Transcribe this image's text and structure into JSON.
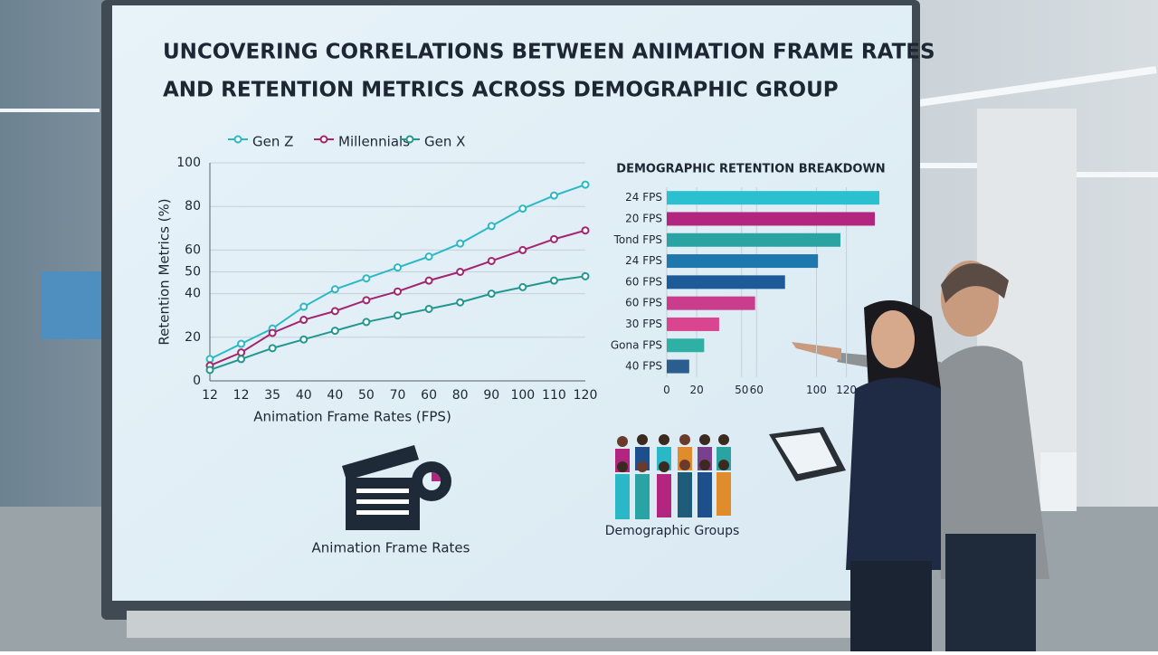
{
  "title_lines": [
    "UNCOVERING CORRELATIONS BETWEEN ANIMATION FRAME RATES",
    "AND RETENTION METRICS ACROSS DEMOGRAPHIC GROUP"
  ],
  "captions": [
    "Animation Frame Rates",
    "Demographic Groups"
  ],
  "chart_data": [
    {
      "type": "line",
      "x_label": "Animation Frame Rates (FPS)",
      "y_label": "Retention Metrics (%)",
      "categories": [
        "12",
        "12",
        "35",
        "40",
        "40",
        "50",
        "70",
        "60",
        "80",
        "90",
        "100",
        "110",
        "120"
      ],
      "series": [
        {
          "name": "Gen Z",
          "color": "#2bb8c6",
          "values": [
            10,
            17,
            24,
            34,
            42,
            47,
            52,
            57,
            63,
            71,
            79,
            85,
            90
          ]
        },
        {
          "name": "Millennials",
          "color": "#a3246f",
          "values": [
            7,
            13,
            22,
            28,
            32,
            37,
            41,
            46,
            50,
            55,
            60,
            65,
            69
          ]
        },
        {
          "name": "Gen X",
          "color": "#22978f",
          "values": [
            5,
            10,
            15,
            19,
            23,
            27,
            30,
            33,
            36,
            40,
            43,
            46,
            48
          ]
        }
      ],
      "ylim": [
        0,
        100
      ],
      "yticks": [
        0,
        20,
        40,
        50,
        60,
        80,
        100
      ],
      "grid": true
    },
    {
      "type": "hbar",
      "title": "DEMOGRAPHIC RETENTION BREAKDOWN",
      "categories": [
        "24 FPS",
        "20 FPS",
        "Tond FPS",
        "24 FPS",
        "60 FPS",
        "60 FPS",
        "30 FPS",
        "Gona FPS",
        "40 FPS"
      ],
      "values": [
        142,
        139,
        116,
        101,
        79,
        59,
        35,
        25,
        15
      ],
      "colors": [
        "#2bc0cf",
        "#b2267f",
        "#2aa3a3",
        "#1f78ad",
        "#1d5b98",
        "#c93d8c",
        "#d9458f",
        "#2fb0a5",
        "#2a5e8e"
      ],
      "xlim": [
        0,
        142
      ],
      "xticks": [
        0,
        20,
        50,
        60,
        100,
        120
      ],
      "grid": true
    }
  ]
}
